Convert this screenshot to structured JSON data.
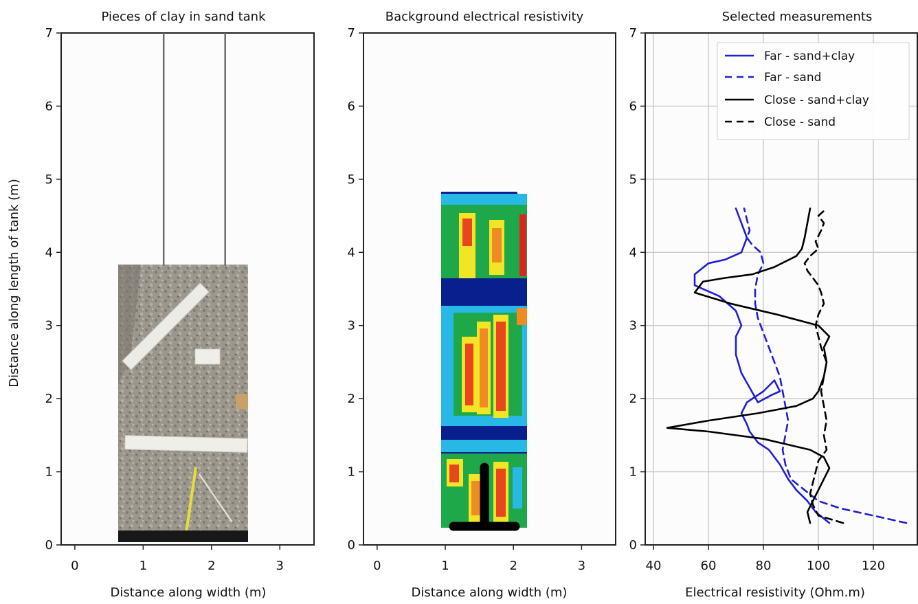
{
  "panels": [
    {
      "title": "Pieces of clay in sand tank",
      "xlabel": "Distance along width (m)",
      "ylabel": "Distance along length of tank (m)",
      "xticks": [
        "0",
        "1",
        "2",
        "3"
      ],
      "yticks": [
        "0",
        "1",
        "2",
        "3",
        "4",
        "5",
        "6",
        "7"
      ],
      "xlim": [
        -0.2,
        3.5
      ],
      "ylim": [
        0,
        7
      ],
      "grid": false,
      "guide_lines_x": [
        1.3,
        2.2
      ],
      "photo": {
        "x": [
          0.8,
          2.6
        ],
        "y": [
          0.03,
          3.82
        ]
      }
    },
    {
      "title": "Background electrical resistivity",
      "xlabel": "Distance along width (m)",
      "xticks": [
        "0",
        "1",
        "2",
        "3"
      ],
      "yticks": [
        "0",
        "1",
        "2",
        "3",
        "4",
        "5",
        "6",
        "7"
      ],
      "xlim": [
        -0.2,
        3.5
      ],
      "ylim": [
        0,
        7
      ],
      "grid": false,
      "map": {
        "x": [
          1.1,
          2.28
        ],
        "y": [
          0.2,
          4.82
        ]
      }
    },
    {
      "title": "Selected measurements",
      "xlabel": "Electrical resistivity (Ohm.m)",
      "xticks": [
        "40",
        "60",
        "80",
        "100",
        "120"
      ],
      "yticks": [
        "0",
        "1",
        "2",
        "3",
        "4",
        "5",
        "6",
        "7"
      ],
      "xlim": [
        37,
        136
      ],
      "ylim": [
        0,
        7
      ],
      "grid": true
    }
  ],
  "legend": {
    "position": "top-right",
    "items": [
      {
        "label": "Far - sand+clay",
        "color": "#2020d0",
        "dash": "solid"
      },
      {
        "label": "Far - sand",
        "color": "#2020d0",
        "dash": "dashed"
      },
      {
        "label": "Close - sand+clay",
        "color": "#000000",
        "dash": "solid"
      },
      {
        "label": "Close - sand",
        "color": "#000000",
        "dash": "dashed"
      }
    ]
  },
  "chart_data": {
    "type": "line",
    "title": "Selected measurements",
    "xlabel": "Electrical resistivity (Ohm.m)",
    "ylabel": "Distance along length of tank (m)",
    "xlim": [
      37,
      136
    ],
    "ylim": [
      0,
      7
    ],
    "grid": true,
    "legend_position": "top-right",
    "series": [
      {
        "name": "Far - sand+clay",
        "color": "#2020d0",
        "dash": "solid",
        "x": [
          104,
          99,
          96,
          92,
          89,
          86,
          82,
          78,
          75,
          74,
          72,
          74,
          80,
          84,
          86,
          83,
          78,
          72,
          70,
          70,
          72,
          70,
          64,
          55,
          55,
          60,
          66,
          72,
          74,
          72,
          70
        ],
        "y": [
          0.3,
          0.45,
          0.6,
          0.75,
          0.9,
          1.1,
          1.3,
          1.4,
          1.55,
          1.65,
          1.8,
          1.95,
          2.1,
          2.25,
          2.1,
          2.05,
          1.95,
          2.35,
          2.6,
          2.85,
          3.0,
          3.2,
          3.4,
          3.55,
          3.7,
          3.85,
          3.9,
          4.0,
          4.2,
          4.4,
          4.6
        ]
      },
      {
        "name": "Far - sand",
        "color": "#2020d0",
        "dash": "dashed",
        "x": [
          132,
          120,
          108,
          100,
          95,
          90,
          88,
          87,
          88,
          89,
          88,
          87,
          86,
          84,
          82,
          80,
          78,
          77,
          77,
          78,
          80,
          79,
          76,
          74,
          75,
          74,
          73
        ],
        "y": [
          0.3,
          0.4,
          0.5,
          0.6,
          0.75,
          0.9,
          1.1,
          1.3,
          1.5,
          1.7,
          1.9,
          2.1,
          2.3,
          2.5,
          2.7,
          2.9,
          3.1,
          3.3,
          3.5,
          3.7,
          3.85,
          4.0,
          4.1,
          4.2,
          4.3,
          4.45,
          4.6
        ]
      },
      {
        "name": "Close - sand+clay",
        "color": "#000000",
        "dash": "solid",
        "x": [
          97,
          96,
          98,
          100,
          102,
          104,
          102,
          97,
          80,
          60,
          45,
          60,
          78,
          92,
          98,
          100,
          102,
          103,
          102,
          104,
          100,
          85,
          68,
          55,
          58,
          66,
          76,
          84,
          92,
          94,
          95,
          96,
          97
        ],
        "y": [
          0.3,
          0.45,
          0.6,
          0.75,
          0.9,
          1.05,
          1.2,
          1.3,
          1.45,
          1.55,
          1.6,
          1.7,
          1.8,
          1.9,
          2.0,
          2.1,
          2.3,
          2.5,
          2.7,
          2.85,
          3.0,
          3.15,
          3.3,
          3.45,
          3.6,
          3.65,
          3.7,
          3.8,
          3.95,
          4.05,
          4.2,
          4.4,
          4.6
        ]
      },
      {
        "name": "Close - sand",
        "color": "#000000",
        "dash": "dashed",
        "x": [
          109,
          100,
          98,
          97,
          98,
          99,
          100,
          103,
          102,
          103,
          102,
          101,
          102,
          103,
          101,
          100,
          99,
          100,
          102,
          101,
          100,
          98,
          96,
          95,
          97,
          100,
          99,
          101,
          102,
          100,
          103
        ],
        "y": [
          0.3,
          0.4,
          0.55,
          0.7,
          0.85,
          1.0,
          1.15,
          1.3,
          1.5,
          1.7,
          1.9,
          2.1,
          2.3,
          2.5,
          2.7,
          2.85,
          3.0,
          3.15,
          3.3,
          3.45,
          3.55,
          3.65,
          3.75,
          3.85,
          3.95,
          4.05,
          4.15,
          4.3,
          4.4,
          4.5,
          4.6
        ]
      }
    ]
  }
}
